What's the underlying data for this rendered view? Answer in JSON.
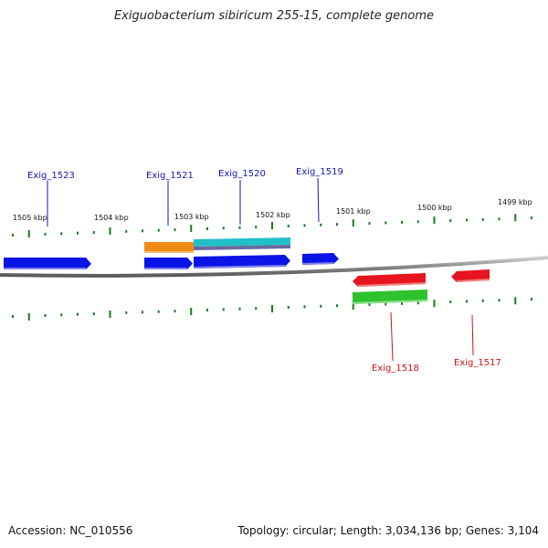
{
  "title": "Exiguobacterium sibiricum 255-15, complete genome",
  "footer": {
    "accession": "Accession: NC_010556",
    "summary": "Topology: circular; Length: 3,034,136 bp; Genes: 3,104"
  },
  "colors": {
    "forward_gene": "#0a14e6",
    "reverse_gene": "#e6141e",
    "orange_feature": "#f08c14",
    "cyan_feature": "#20c0c8",
    "green_feature": "#2ec22e",
    "tick": "#1a7a1a",
    "backbone": "#8a8a8a",
    "forward_label": "#1414b4",
    "reverse_label": "#c81414"
  },
  "tick_labels": [
    "1505 kbp",
    "1504 kbp",
    "1503 kbp",
    "1502 kbp",
    "1501 kbp",
    "1500 kbp",
    "1499 kbp"
  ],
  "gene_labels": {
    "forward": [
      "Exig_1523",
      "Exig_1521",
      "Exig_1520",
      "Exig_1519"
    ],
    "reverse": [
      "Exig_1518",
      "Exig_1517"
    ]
  }
}
